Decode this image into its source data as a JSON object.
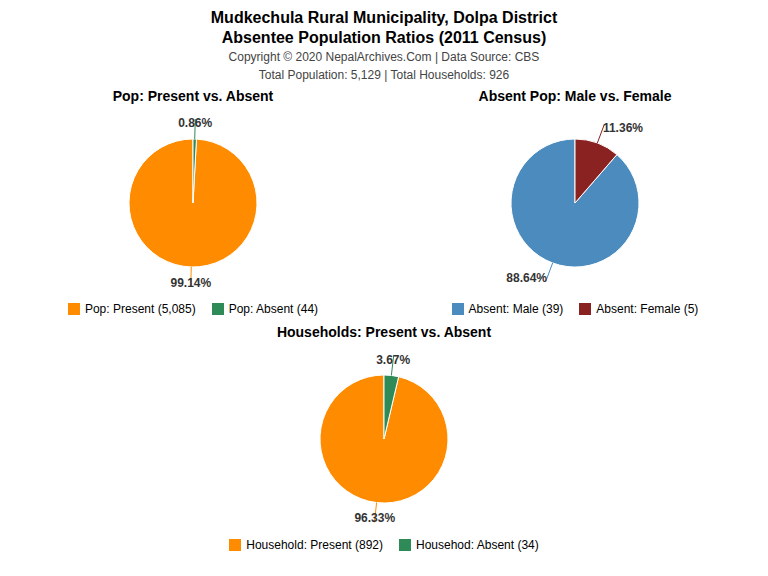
{
  "title": "Mudkechula Rural Municipality, Dolpa District",
  "subtitle": "Absentee Population Ratios (2011 Census)",
  "annotations": [
    "Copyright © 2020 NepalArchives.Com | Data Source: CBS",
    "Total Population: 5,129 | Total Households: 926"
  ],
  "chart_data": [
    {
      "type": "pie",
      "title": "Pop: Present vs. Absent",
      "categories": [
        "Pop: Present (5,085)",
        "Pop: Absent (44)"
      ],
      "values": [
        99.14,
        0.86
      ],
      "value_labels": [
        "99.14%",
        "0.86%"
      ],
      "colors": [
        "#FF8C00",
        "#2E8B57"
      ],
      "data_labels": true,
      "legend": "bottom"
    },
    {
      "type": "pie",
      "title": "Absent Pop: Male vs. Female",
      "categories": [
        "Absent: Male (39)",
        "Absent: Female (5)"
      ],
      "values": [
        88.64,
        11.36
      ],
      "value_labels": [
        "88.64%",
        "11.36%"
      ],
      "colors": [
        "#4B8BBE",
        "#8B2222"
      ],
      "data_labels": true,
      "legend": "bottom"
    },
    {
      "type": "pie",
      "title": "Households: Present vs. Absent",
      "categories": [
        "Household: Present (892)",
        "Househod: Absent (34)"
      ],
      "values": [
        96.33,
        3.67
      ],
      "value_labels": [
        "96.33%",
        "3.67%"
      ],
      "colors": [
        "#FF8C00",
        "#2E8B57"
      ],
      "data_labels": true,
      "legend": "bottom"
    }
  ]
}
